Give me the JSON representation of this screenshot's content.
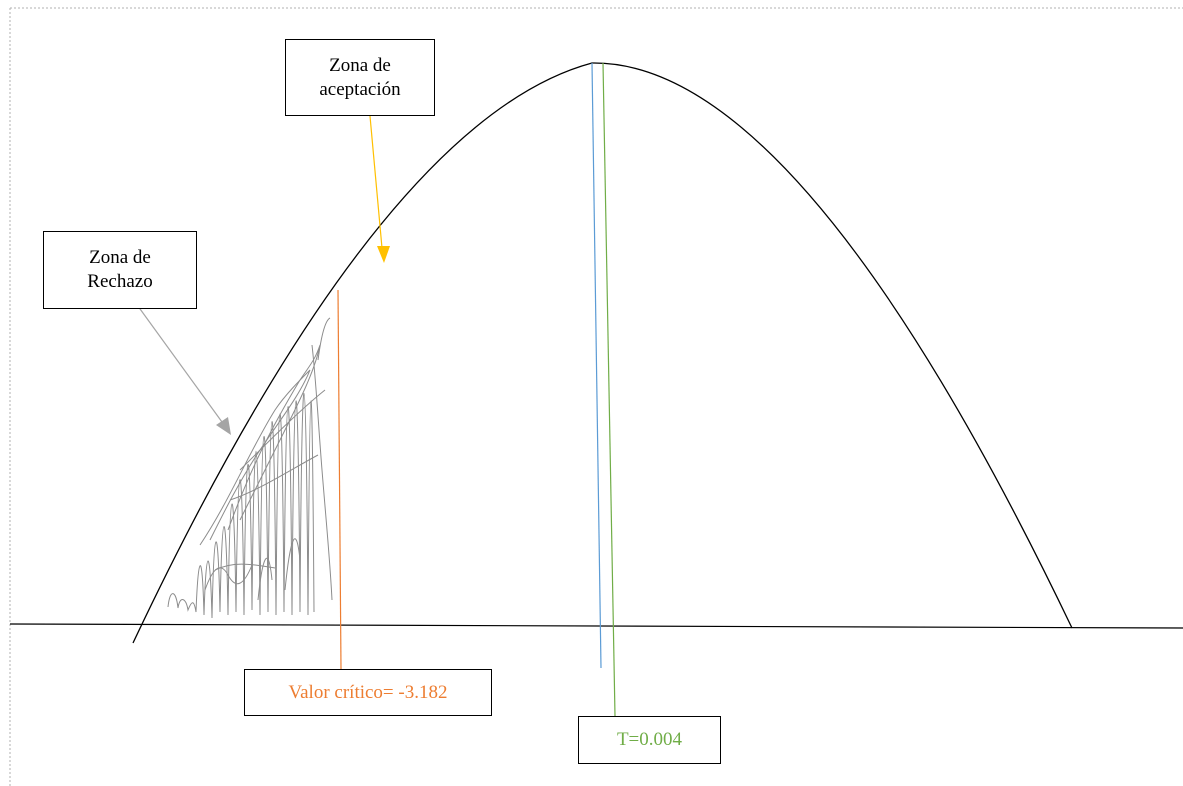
{
  "labels": {
    "acceptance_zone": "Zona de\naceptación",
    "rejection_zone": "Zona de\nRechazo",
    "critical_value": "Valor crítico= -3.182",
    "t_value": "T=0.004"
  },
  "colors": {
    "curve": "#000000",
    "critical_line": "#ed7d31",
    "t_line": "#70ad47",
    "mean_line": "#5b9bd5",
    "acceptance_arrow": "#ffc000",
    "rejection_arrow": "#a5a5a5",
    "shading": "#8c8c8c"
  }
}
